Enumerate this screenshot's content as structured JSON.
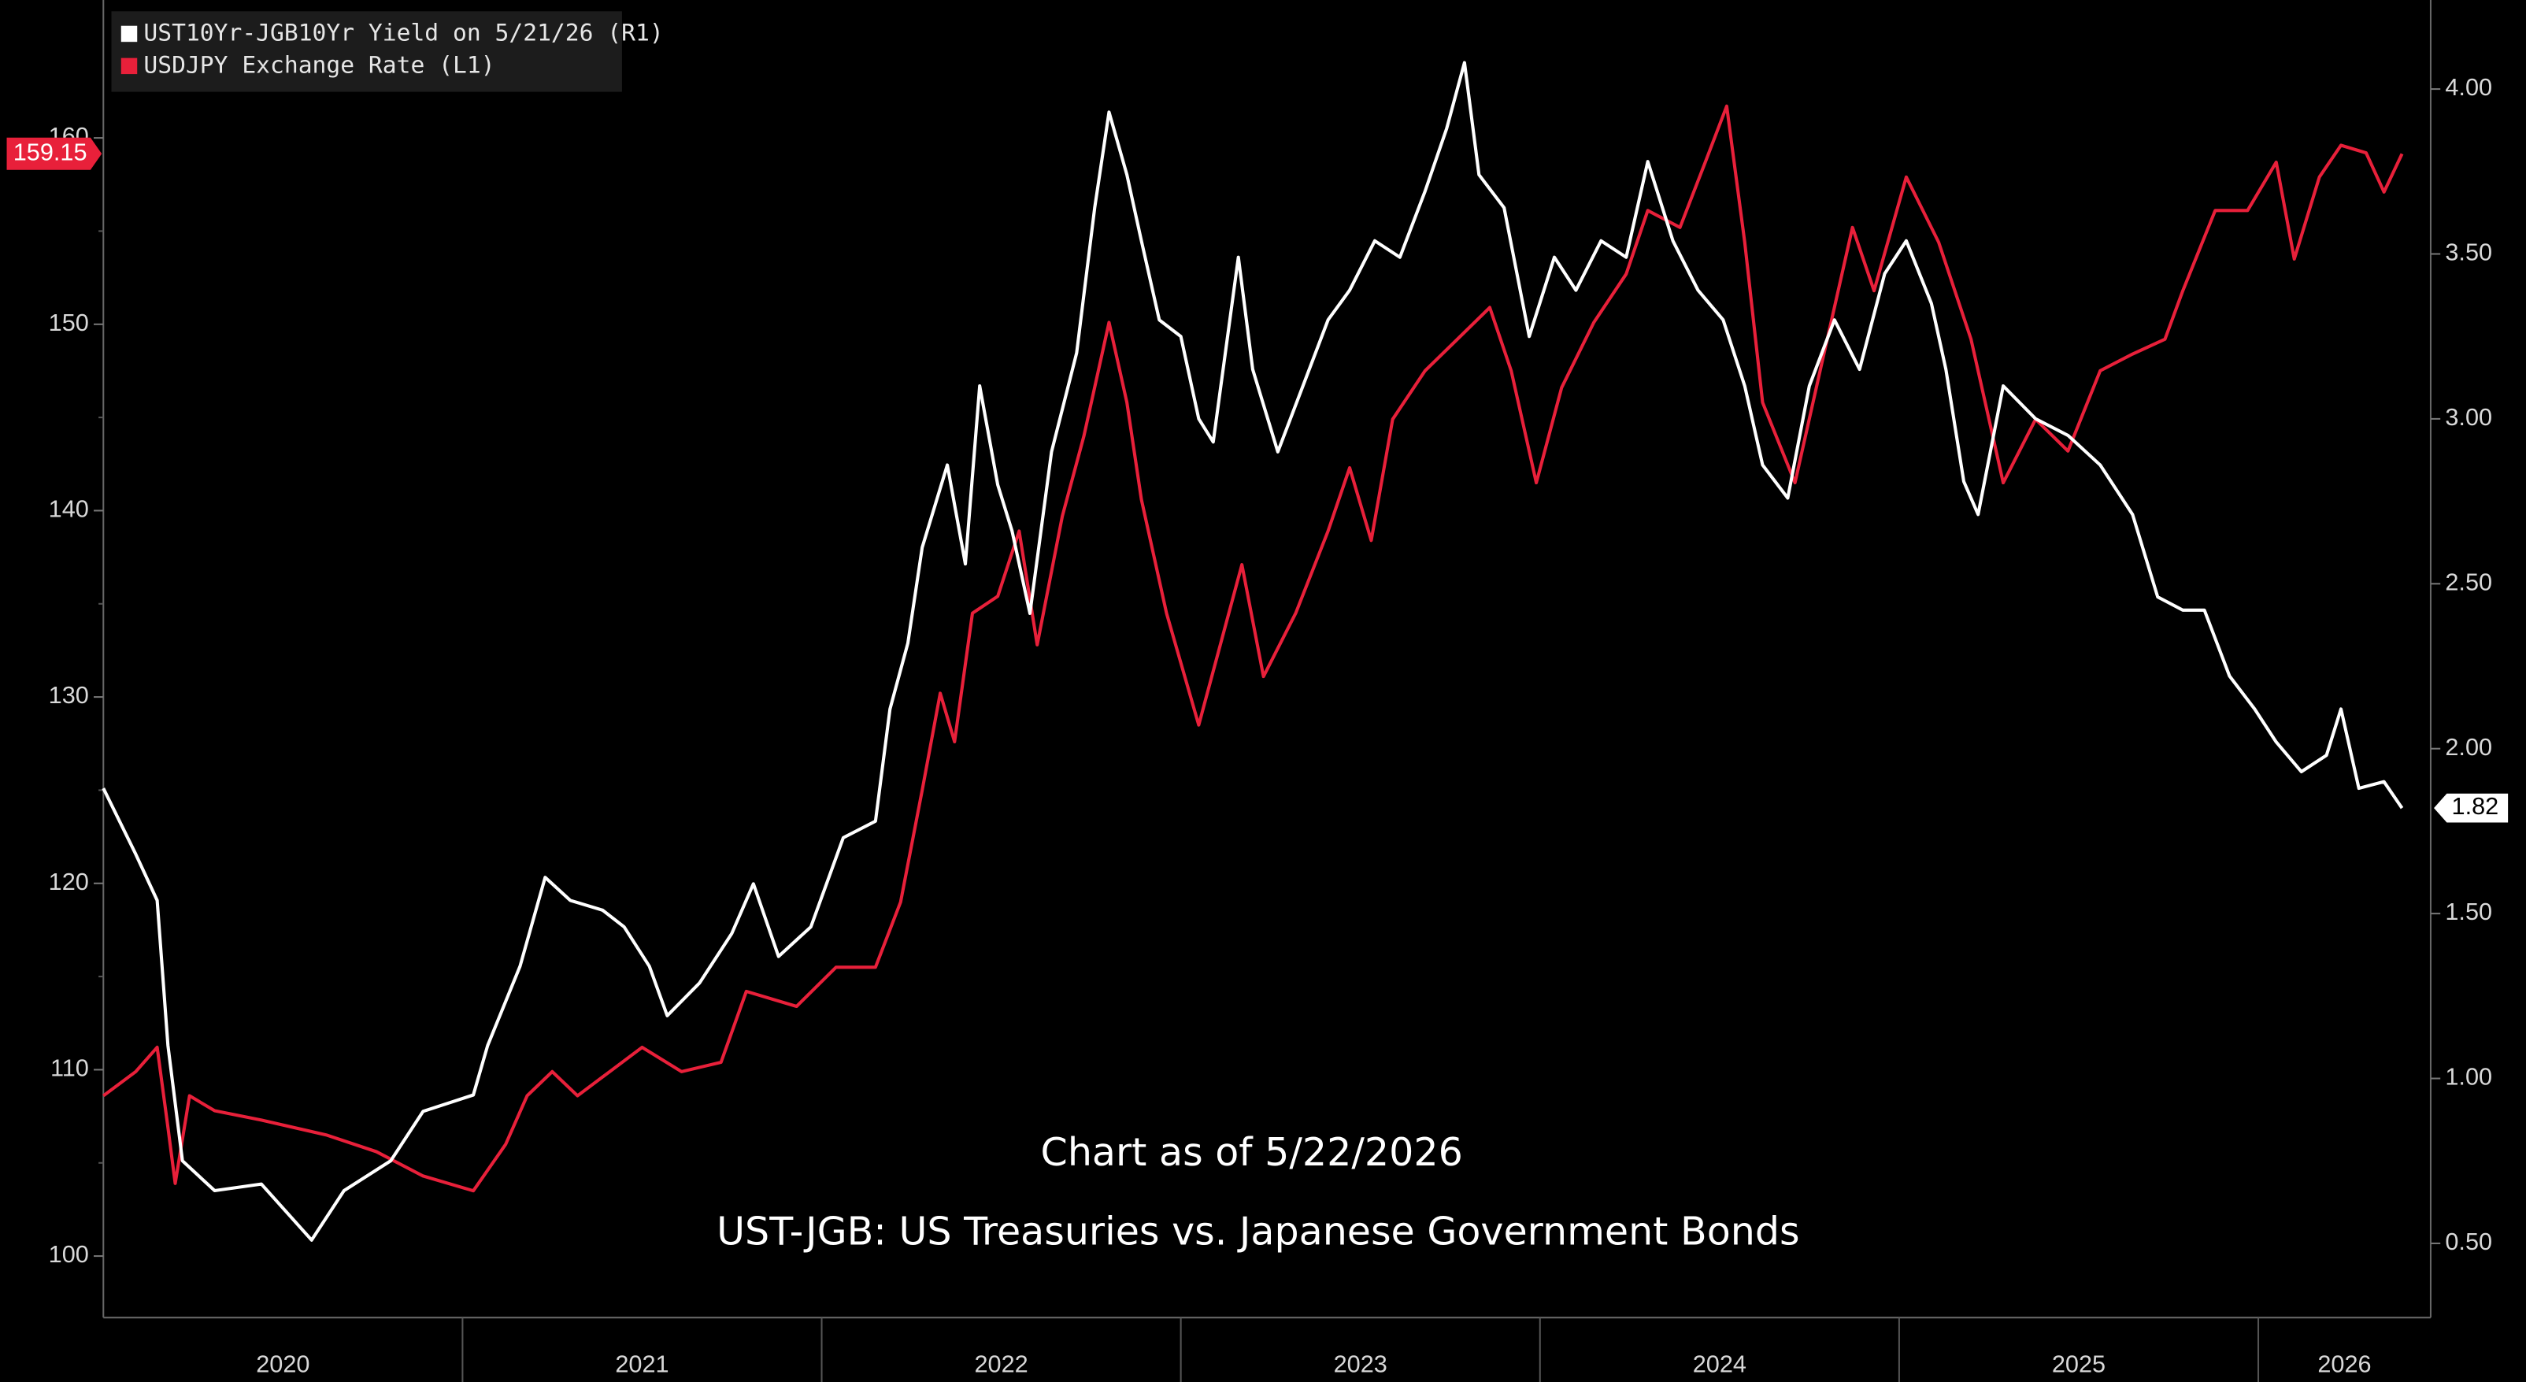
{
  "chart_data": {
    "type": "line",
    "annotations": [
      "Chart as of 5/22/2026",
      "UST-JGB: US Treasuries vs. Japanese Government Bonds"
    ],
    "xlim": [
      2020.0,
      2026.48
    ],
    "xticks": [
      2020,
      2021,
      2022,
      2023,
      2024,
      2025,
      2026
    ],
    "ylim": [
      96.7,
      167.4
    ],
    "yticks": [
      100,
      110,
      120,
      130,
      140,
      150,
      160
    ],
    "y2lim": [
      0.275,
      4.27
    ],
    "y2ticks": [
      {
        "value": 0.5,
        "label": "0.50"
      },
      {
        "value": 1,
        "label": "1.00"
      },
      {
        "value": 1.5,
        "label": "1.50"
      },
      {
        "value": 2,
        "label": "2.00"
      },
      {
        "value": 2.5,
        "label": "2.50"
      },
      {
        "value": 3,
        "label": "3.00"
      },
      {
        "value": 3.5,
        "label": "3.50"
      },
      {
        "value": 4,
        "label": "4.00"
      }
    ],
    "grid": false,
    "legend": "top-left",
    "series": [
      {
        "name": "UST10Yr-JGB10Yr Yield on 5/21/26 (R1)",
        "color": "#ffffff",
        "axis": "y2",
        "last_label": "1.82",
        "x": [
          2020.0,
          2020.09,
          2020.15,
          2020.18,
          2020.22,
          2020.31,
          2020.44,
          2020.58,
          2020.67,
          2020.8,
          2020.89,
          2021.03,
          2021.07,
          2021.16,
          2021.23,
          2021.3,
          2021.39,
          2021.45,
          2021.52,
          2021.57,
          2021.66,
          2021.75,
          2021.81,
          2021.88,
          2021.97,
          2022.06,
          2022.15,
          2022.19,
          2022.24,
          2022.28,
          2022.35,
          2022.4,
          2022.44,
          2022.49,
          2022.53,
          2022.58,
          2022.64,
          2022.71,
          2022.76,
          2022.8,
          2022.85,
          2022.89,
          2022.94,
          2023.0,
          2023.05,
          2023.09,
          2023.16,
          2023.2,
          2023.27,
          2023.34,
          2023.41,
          2023.47,
          2023.54,
          2023.61,
          2023.68,
          2023.74,
          2023.79,
          2023.83,
          2023.9,
          2023.97,
          2024.04,
          2024.1,
          2024.17,
          2024.24,
          2024.3,
          2024.37,
          2024.44,
          2024.51,
          2024.57,
          2024.62,
          2024.69,
          2024.75,
          2024.82,
          2024.89,
          2024.96,
          2025.02,
          2025.09,
          2025.13,
          2025.18,
          2025.22,
          2025.29,
          2025.38,
          2025.47,
          2025.56,
          2025.65,
          2025.72,
          2025.79,
          2025.85,
          2025.92,
          2025.99,
          2026.05,
          2026.12,
          2026.19,
          2026.23,
          2026.28,
          2026.35,
          2026.4
        ],
        "values": [
          1.88,
          1.68,
          1.54,
          1.1,
          0.75,
          0.66,
          0.68,
          0.51,
          0.66,
          0.75,
          0.9,
          0.95,
          1.1,
          1.34,
          1.61,
          1.54,
          1.51,
          1.46,
          1.34,
          1.19,
          1.29,
          1.44,
          1.59,
          1.37,
          1.46,
          1.73,
          1.78,
          2.12,
          2.32,
          2.61,
          2.86,
          2.56,
          3.1,
          2.8,
          2.66,
          2.41,
          2.9,
          3.2,
          3.64,
          3.93,
          3.74,
          3.54,
          3.3,
          3.25,
          3.0,
          2.93,
          3.49,
          3.15,
          2.9,
          3.1,
          3.3,
          3.39,
          3.54,
          3.49,
          3.69,
          3.88,
          4.08,
          3.74,
          3.64,
          3.25,
          3.49,
          3.39,
          3.54,
          3.49,
          3.78,
          3.54,
          3.39,
          3.3,
          3.1,
          2.86,
          2.76,
          3.1,
          3.3,
          3.15,
          3.44,
          3.54,
          3.35,
          3.15,
          2.81,
          2.71,
          3.1,
          3.0,
          2.95,
          2.86,
          2.71,
          2.46,
          2.42,
          2.42,
          2.22,
          2.12,
          2.02,
          1.93,
          1.98,
          2.12,
          1.88,
          1.9,
          1.82
        ]
      },
      {
        "name": "USDJPY Exchange Rate (L1)",
        "color": "#e8203a",
        "last_label": "159.15",
        "x": [
          2020.0,
          2020.09,
          2020.15,
          2020.18,
          2020.2,
          2020.24,
          2020.31,
          2020.44,
          2020.62,
          2020.76,
          2020.89,
          2021.03,
          2021.12,
          2021.18,
          2021.25,
          2021.32,
          2021.41,
          2021.5,
          2021.61,
          2021.72,
          2021.79,
          2021.93,
          2022.04,
          2022.15,
          2022.22,
          2022.28,
          2022.33,
          2022.37,
          2022.42,
          2022.49,
          2022.55,
          2022.6,
          2022.67,
          2022.73,
          2022.8,
          2022.85,
          2022.89,
          2022.96,
          2023.05,
          2023.11,
          2023.17,
          2023.23,
          2023.32,
          2023.41,
          2023.47,
          2023.53,
          2023.59,
          2023.68,
          2023.77,
          2023.86,
          2023.92,
          2023.99,
          2024.06,
          2024.15,
          2024.24,
          2024.3,
          2024.39,
          2024.46,
          2024.52,
          2024.57,
          2024.62,
          2024.71,
          2024.78,
          2024.87,
          2024.93,
          2025.02,
          2025.11,
          2025.2,
          2025.29,
          2025.38,
          2025.47,
          2025.56,
          2025.65,
          2025.74,
          2025.79,
          2025.88,
          2025.97,
          2026.05,
          2026.1,
          2026.17,
          2026.23,
          2026.3,
          2026.35,
          2026.4
        ],
        "values": [
          108.6,
          109.9,
          111.2,
          106.9,
          103.9,
          108.6,
          107.8,
          107.3,
          106.5,
          105.6,
          104.3,
          103.5,
          106.0,
          108.6,
          109.9,
          108.6,
          109.9,
          111.2,
          109.9,
          110.4,
          114.2,
          113.4,
          115.5,
          115.5,
          119.0,
          125.0,
          130.2,
          127.6,
          134.5,
          135.4,
          138.9,
          132.8,
          139.7,
          144.0,
          150.1,
          145.8,
          140.6,
          134.5,
          128.5,
          132.8,
          137.1,
          131.1,
          134.5,
          138.9,
          142.3,
          138.4,
          144.9,
          147.5,
          149.2,
          150.9,
          147.5,
          141.5,
          146.6,
          150.1,
          152.7,
          156.1,
          155.2,
          158.7,
          161.7,
          154.4,
          145.8,
          141.5,
          147.5,
          155.2,
          151.8,
          157.9,
          154.4,
          149.2,
          141.5,
          144.9,
          143.2,
          147.5,
          148.4,
          149.2,
          151.8,
          156.1,
          156.1,
          158.7,
          153.5,
          157.9,
          159.6,
          159.2,
          157.1,
          159.15
        ]
      }
    ]
  }
}
